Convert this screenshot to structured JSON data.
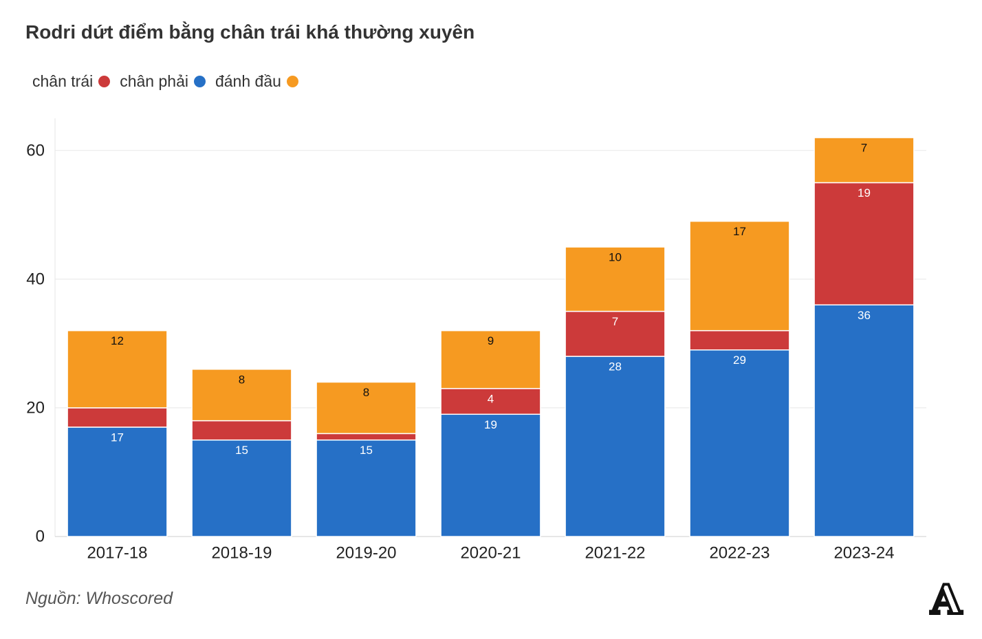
{
  "source": "Nguồn: Whoscored",
  "logo": "A",
  "chart_data": {
    "type": "bar",
    "stacked": true,
    "title": "Rodri dứt điểm bằng chân trái khá thường xuyên",
    "xlabel": "",
    "ylabel": "",
    "categories": [
      "2017-18",
      "2018-19",
      "2019-20",
      "2020-21",
      "2021-22",
      "2022-23",
      "2023-24"
    ],
    "series": [
      {
        "name": "chân trái",
        "color": "#cc3a3a",
        "label_color": "#ffffff",
        "values": [
          3,
          3,
          1,
          4,
          7,
          3,
          19
        ]
      },
      {
        "name": "chân phải",
        "color": "#2670c6",
        "label_color": "#ffffff",
        "values": [
          17,
          15,
          15,
          19,
          28,
          29,
          36
        ]
      },
      {
        "name": "đánh đầu",
        "color": "#f69a21",
        "label_color": "#111111",
        "values": [
          12,
          8,
          8,
          9,
          10,
          17,
          7
        ]
      }
    ],
    "stack_order": [
      1,
      0,
      2
    ],
    "yticks": [
      0,
      20,
      40,
      60
    ],
    "ylim": [
      0,
      65
    ],
    "grid": true
  }
}
